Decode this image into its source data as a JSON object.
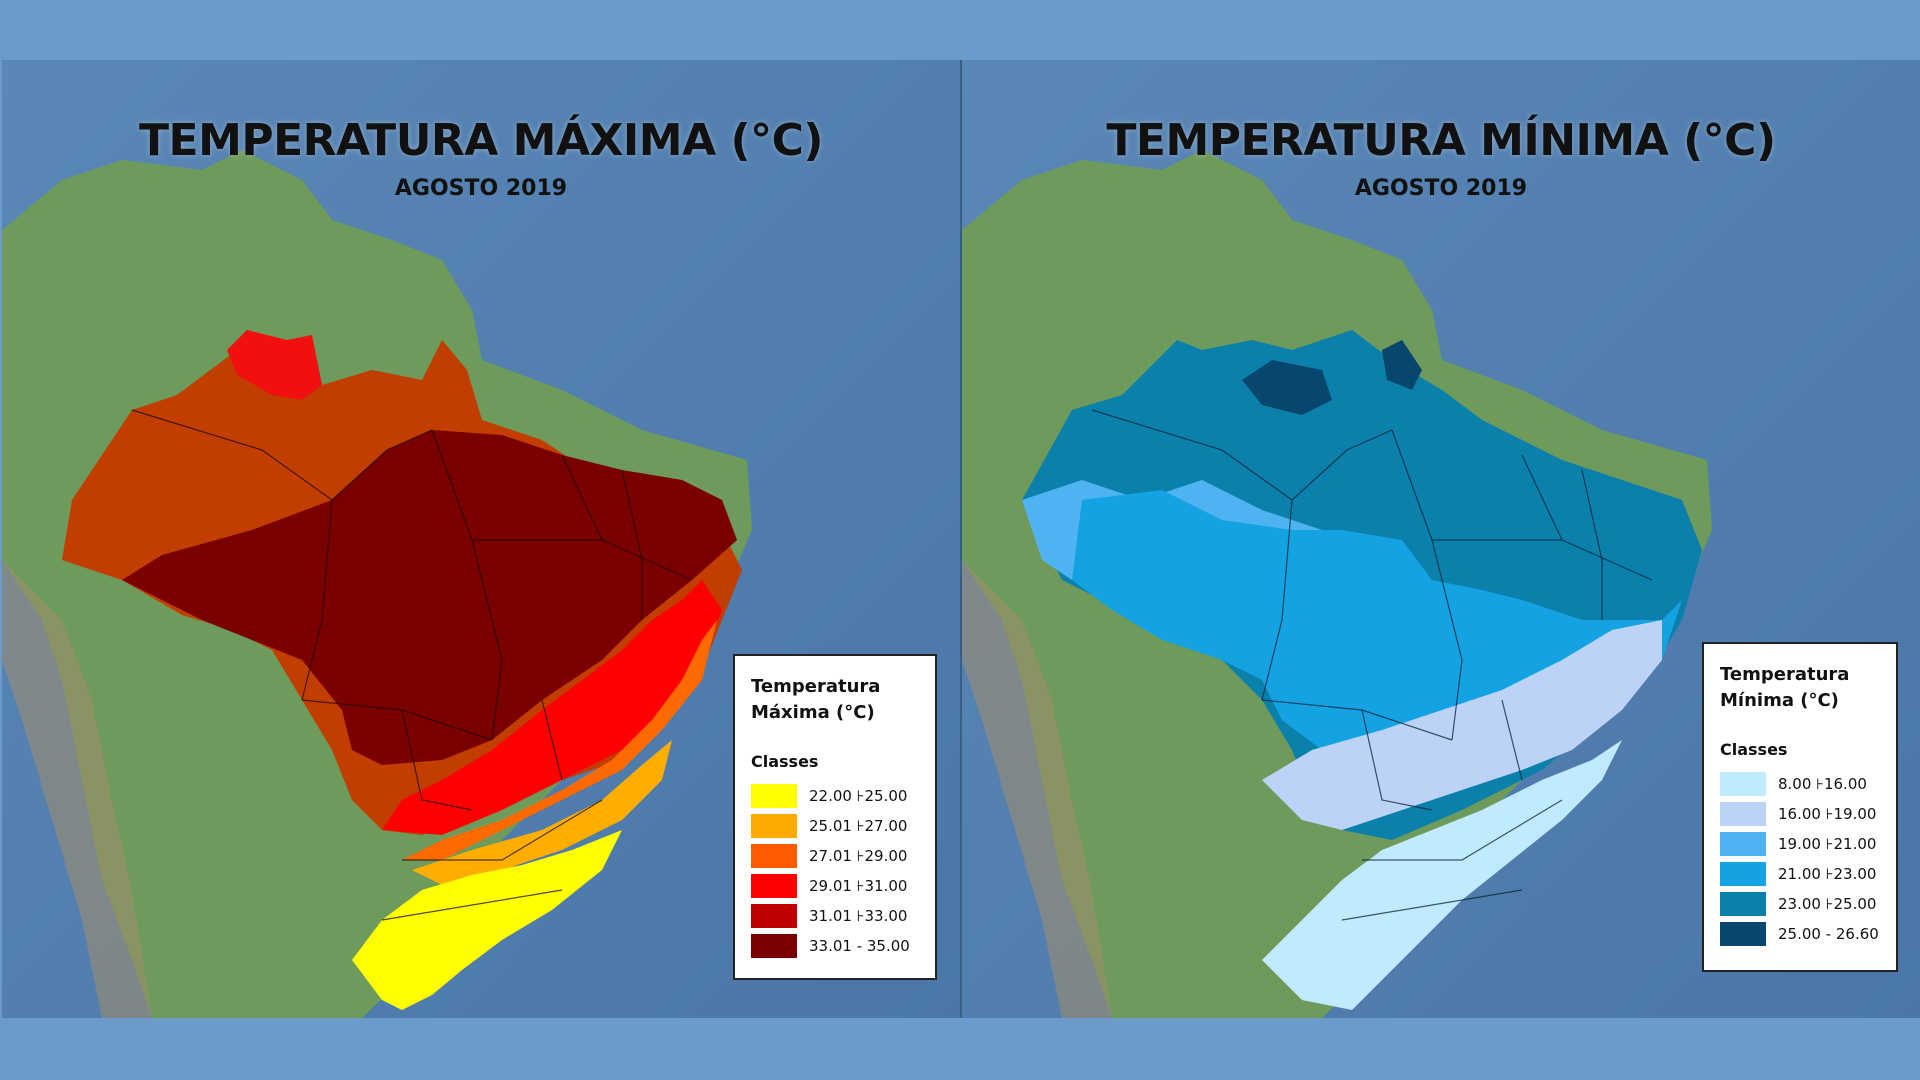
{
  "maps": [
    {
      "title": "TEMPERATURA MÁXIMA (°C)",
      "subtitle": "AGOSTO 2019",
      "legend": {
        "title": "Temperatura\nMáxima (°C)",
        "classes_label": "Classes",
        "items": [
          {
            "range": "22.00 ⊦25.00",
            "color": "#ffff00"
          },
          {
            "range": "25.01 ⊦27.00",
            "color": "#ffaa00"
          },
          {
            "range": "27.01 ⊦29.00",
            "color": "#ff5a00"
          },
          {
            "range": "29.01 ⊦31.00",
            "color": "#ff0000"
          },
          {
            "range": "31.01 ⊦33.00",
            "color": "#c00000"
          },
          {
            "range": "33.01 - 35.00",
            "color": "#7a0000"
          }
        ]
      }
    },
    {
      "title": "TEMPERATURA MÍNIMA (°C)",
      "subtitle": "AGOSTO 2019",
      "legend": {
        "title": "Temperatura\nMínima (°C)",
        "classes_label": "Classes",
        "items": [
          {
            "range": "8.00 ⊦16.00",
            "color": "#bfeaff"
          },
          {
            "range": "16.00 ⊦19.00",
            "color": "#bcd3f7"
          },
          {
            "range": "19.00 ⊦21.00",
            "color": "#4fb3f2"
          },
          {
            "range": "21.00 ⊦23.00",
            "color": "#15a2e2"
          },
          {
            "range": "23.00 ⊦25.00",
            "color": "#0a80ab"
          },
          {
            "range": "25.00 - 26.60",
            "color": "#07466d"
          }
        ]
      }
    }
  ]
}
